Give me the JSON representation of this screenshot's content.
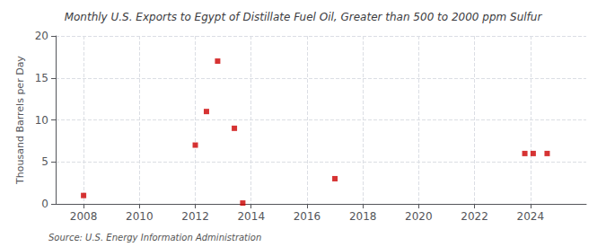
{
  "chart_data": {
    "type": "scatter",
    "title": "Monthly U.S. Exports to Egypt of Distillate Fuel Oil, Greater than 500 to 2000 ppm Sulfur",
    "ylabel": "Thousand Barrels per Day",
    "annotation": "Source: U.S. Energy Information Administration",
    "xlim": [
      2007.0,
      2026.0
    ],
    "xticks": [
      2008,
      2010,
      2012,
      2014,
      2016,
      2018,
      2020,
      2022,
      2024
    ],
    "ylim": [
      0,
      20
    ],
    "yticks": [
      0,
      5,
      10,
      15,
      20
    ],
    "grid": true,
    "series": [
      {
        "x": [
          2008.0,
          2012.0,
          2012.4,
          2012.8,
          2013.4,
          2017.0,
          2023.8,
          2024.1,
          2024.6
        ],
        "values": [
          1.0,
          7.0,
          11.0,
          17.0,
          9.0,
          3.0,
          6.0,
          6.0,
          6.0
        ],
        "color": "#cc0000",
        "marker": "square"
      },
      {
        "x": [
          2013.7
        ],
        "values": [
          0.1
        ],
        "color": "#cc0000",
        "marker": "square"
      }
    ]
  }
}
